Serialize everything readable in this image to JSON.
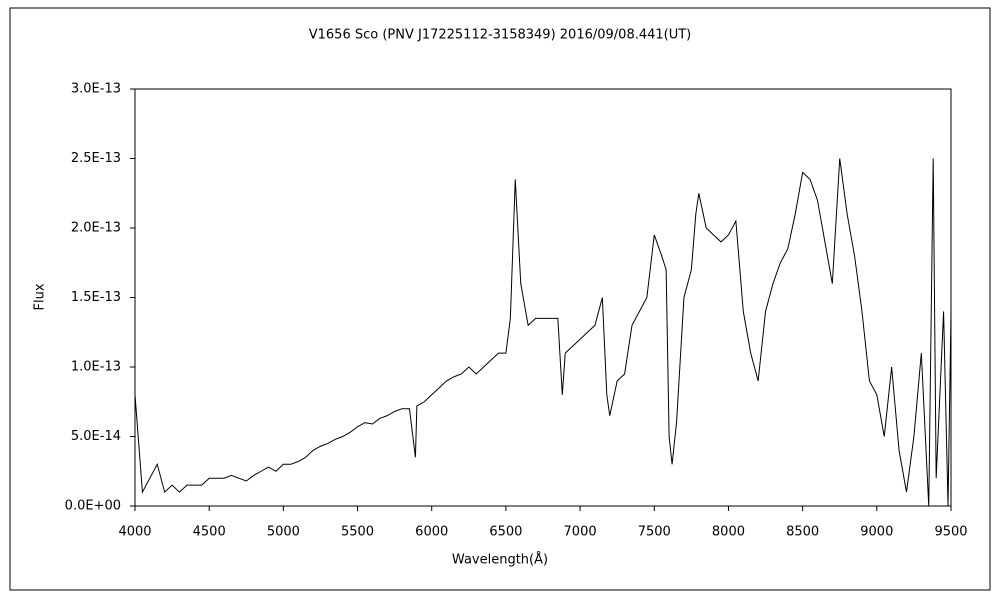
{
  "chart_data": {
    "type": "line",
    "title": "V1656 Sco (PNV J17225112-3158349)    2016/09/08.441(UT)",
    "xlabel": "Wavelength(Å)",
    "ylabel": "Flux",
    "color": "#000000",
    "xlim": [
      4000,
      9500
    ],
    "xticks": [
      4000,
      4500,
      5000,
      5500,
      6000,
      6500,
      7000,
      7500,
      8000,
      8500,
      9000,
      9500
    ],
    "ylim": [
      0,
      3e-13
    ],
    "yticks": [
      {
        "value": 0,
        "label": "0.0E+00"
      },
      {
        "value": 5e-14,
        "label": "5.0E-14"
      },
      {
        "value": 1e-13,
        "label": "1.0E-13"
      },
      {
        "value": 1.5e-13,
        "label": "1.5E-13"
      },
      {
        "value": 2e-13,
        "label": "2.0E-13"
      },
      {
        "value": 2.5e-13,
        "label": "2.5E-13"
      },
      {
        "value": 3e-13,
        "label": "3.0E-13"
      }
    ],
    "x": [
      4000,
      4050,
      4100,
      4150,
      4200,
      4250,
      4300,
      4350,
      4400,
      4450,
      4500,
      4550,
      4600,
      4650,
      4700,
      4750,
      4800,
      4850,
      4900,
      4950,
      5000,
      5050,
      5100,
      5150,
      5200,
      5250,
      5300,
      5350,
      5400,
      5450,
      5500,
      5550,
      5600,
      5650,
      5700,
      5750,
      5800,
      5850,
      5890,
      5900,
      5950,
      6000,
      6050,
      6100,
      6150,
      6200,
      6250,
      6300,
      6350,
      6400,
      6450,
      6500,
      6530,
      6563,
      6600,
      6650,
      6700,
      6750,
      6800,
      6850,
      6880,
      6900,
      6950,
      7000,
      7050,
      7100,
      7150,
      7180,
      7200,
      7250,
      7300,
      7350,
      7400,
      7450,
      7500,
      7550,
      7580,
      7600,
      7620,
      7650,
      7700,
      7750,
      7780,
      7800,
      7850,
      7900,
      7950,
      8000,
      8050,
      8100,
      8150,
      8200,
      8250,
      8300,
      8350,
      8400,
      8450,
      8500,
      8550,
      8600,
      8650,
      8700,
      8750,
      8800,
      8850,
      8900,
      8950,
      9000,
      9050,
      9100,
      9150,
      9200,
      9250,
      9300,
      9350,
      9380,
      9400,
      9450,
      9480,
      9500
    ],
    "values": [
      8e-14,
      1e-14,
      2e-14,
      3e-14,
      1e-14,
      1.5e-14,
      1e-14,
      1.5e-14,
      1.5e-14,
      1.5e-14,
      2e-14,
      2e-14,
      2e-14,
      2.2e-14,
      2e-14,
      1.8e-14,
      2.2e-14,
      2.5e-14,
      2.8e-14,
      2.5e-14,
      3e-14,
      3e-14,
      3.2e-14,
      3.5e-14,
      4e-14,
      4.3e-14,
      4.5e-14,
      4.8e-14,
      5e-14,
      5.3e-14,
      5.7e-14,
      6e-14,
      5.9e-14,
      6.3e-14,
      6.5e-14,
      6.8e-14,
      7e-14,
      7e-14,
      3.5e-14,
      7.2e-14,
      7.5e-14,
      8e-14,
      8.5e-14,
      9e-14,
      9.3e-14,
      9.5e-14,
      1e-13,
      9.5e-14,
      1e-13,
      1.05e-13,
      1.1e-13,
      1.1e-13,
      1.35e-13,
      2.35e-13,
      1.6e-13,
      1.3e-13,
      1.35e-13,
      1.35e-13,
      1.35e-13,
      1.35e-13,
      8e-14,
      1.1e-13,
      1.15e-13,
      1.2e-13,
      1.25e-13,
      1.3e-13,
      1.5e-13,
      8e-14,
      6.5e-14,
      9e-14,
      9.5e-14,
      1.3e-13,
      1.4e-13,
      1.5e-13,
      1.95e-13,
      1.8e-13,
      1.7e-13,
      5e-14,
      3e-14,
      6e-14,
      1.5e-13,
      1.7e-13,
      2.1e-13,
      2.25e-13,
      2e-13,
      1.95e-13,
      1.9e-13,
      1.95e-13,
      2.05e-13,
      1.4e-13,
      1.1e-13,
      9e-14,
      1.4e-13,
      1.6e-13,
      1.75e-13,
      1.85e-13,
      2.1e-13,
      2.4e-13,
      2.35e-13,
      2.2e-13,
      1.9e-13,
      1.6e-13,
      2.5e-13,
      2.1e-13,
      1.8e-13,
      1.4e-13,
      9e-14,
      8e-14,
      5e-14,
      1e-13,
      4e-14,
      1e-14,
      5e-14,
      1.1e-13,
      0,
      2.5e-13,
      2e-14,
      1.4e-13,
      0,
      1.4e-13
    ]
  }
}
